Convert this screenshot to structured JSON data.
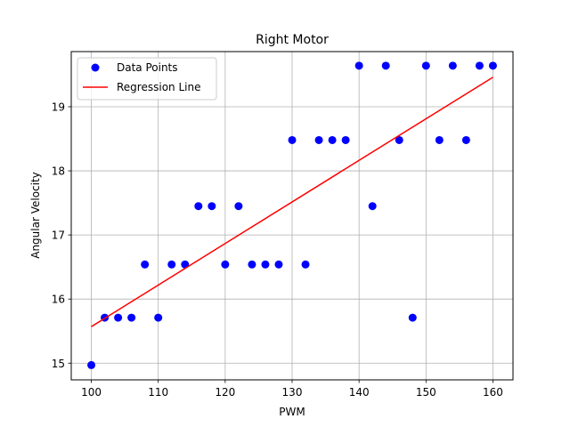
{
  "chart_data": {
    "type": "scatter",
    "title": "Right Motor",
    "xlabel": "PWM",
    "ylabel": "Angular Velocity",
    "xlim": [
      97,
      163
    ],
    "ylim": [
      14.74,
      19.86
    ],
    "xticks": [
      100,
      110,
      120,
      130,
      140,
      150,
      160
    ],
    "yticks": [
      15,
      16,
      17,
      18,
      19
    ],
    "grid": true,
    "legend_placement": "top-left",
    "colors": {
      "points": "#0000ff",
      "line": "#ff0000"
    },
    "series": [
      {
        "name": "Data Points",
        "kind": "scatter",
        "x": [
          100,
          102,
          104,
          106,
          108,
          110,
          112,
          114,
          116,
          118,
          120,
          122,
          124,
          126,
          128,
          130,
          132,
          134,
          136,
          138,
          140,
          142,
          144,
          146,
          148,
          150,
          152,
          154,
          156,
          158,
          160
        ],
        "y": [
          14.97,
          15.71,
          15.71,
          15.71,
          16.54,
          15.71,
          16.54,
          16.54,
          17.45,
          17.45,
          16.54,
          17.45,
          16.54,
          16.54,
          16.54,
          18.48,
          16.54,
          18.48,
          18.48,
          18.48,
          19.64,
          17.45,
          19.64,
          18.48,
          15.71,
          19.64,
          18.48,
          19.64,
          18.48,
          19.64,
          19.64
        ]
      },
      {
        "name": "Regression Line",
        "kind": "line",
        "x": [
          100,
          160
        ],
        "y": [
          15.57,
          19.46
        ]
      }
    ]
  }
}
